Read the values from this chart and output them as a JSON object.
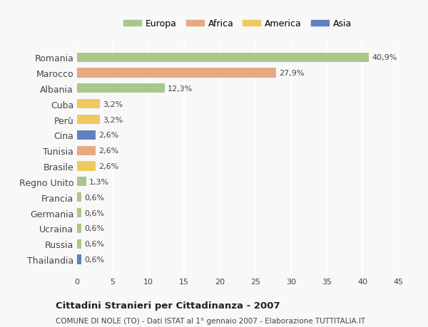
{
  "countries": [
    "Romania",
    "Marocco",
    "Albania",
    "Cuba",
    "Perù",
    "Cina",
    "Tunisia",
    "Brasile",
    "Regno Unito",
    "Francia",
    "Germania",
    "Ucraina",
    "Russia",
    "Thailandia"
  ],
  "values": [
    40.9,
    27.9,
    12.3,
    3.2,
    3.2,
    2.6,
    2.6,
    2.6,
    1.3,
    0.6,
    0.6,
    0.6,
    0.6,
    0.6
  ],
  "labels": [
    "40,9%",
    "27,9%",
    "12,3%",
    "3,2%",
    "3,2%",
    "2,6%",
    "2,6%",
    "2,6%",
    "1,3%",
    "0,6%",
    "0,6%",
    "0,6%",
    "0,6%",
    "0,6%"
  ],
  "continents": [
    "Europa",
    "Africa",
    "Europa",
    "America",
    "America",
    "Asia",
    "Africa",
    "America",
    "Europa",
    "Europa",
    "Europa",
    "Europa",
    "Europa",
    "Asia"
  ],
  "continent_colors": {
    "Europa": "#a8c88a",
    "Africa": "#e8a882",
    "America": "#f0c860",
    "Asia": "#6080c0"
  },
  "legend_order": [
    "Europa",
    "Africa",
    "America",
    "Asia"
  ],
  "legend_colors": [
    "#a8c88a",
    "#e8a882",
    "#f0c860",
    "#6080c0"
  ],
  "title": "Cittadini Stranieri per Cittadinanza - 2007",
  "subtitle": "COMUNE DI NOLE (TO) - Dati ISTAT al 1° gennaio 2007 - Elaborazione TUTTITALIA.IT",
  "xlim": [
    0,
    45
  ],
  "xticks": [
    0,
    5,
    10,
    15,
    20,
    25,
    30,
    35,
    40,
    45
  ],
  "background_color": "#f8f8f8",
  "grid_color": "#ffffff",
  "bar_height": 0.6
}
